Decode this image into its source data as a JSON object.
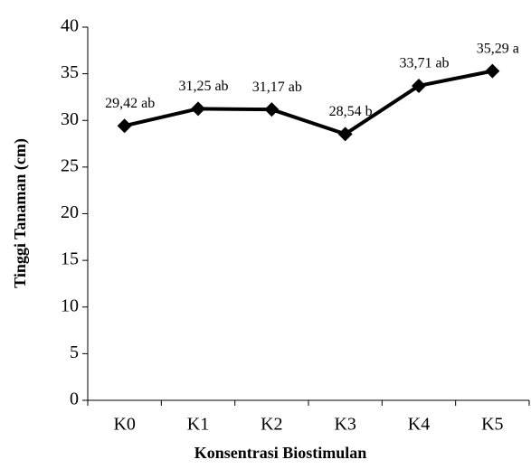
{
  "chart_data": {
    "type": "line",
    "x_label": "Konsentrasi Biostimulan",
    "y_label": "Tinggi Tanaman (cm)",
    "categories": [
      "K0",
      "K1",
      "K2",
      "K3",
      "K4",
      "K5"
    ],
    "series": [
      {
        "name": "Tinggi Tanaman",
        "color": "#000000",
        "values": [
          29.42,
          31.25,
          31.17,
          28.54,
          33.71,
          35.29
        ],
        "value_labels": [
          "29,42 ab",
          "31,25 ab",
          "31,17 ab",
          "28,54 b",
          "33,71 ab",
          "35,29 a"
        ]
      }
    ],
    "ylim": [
      0,
      40
    ],
    "yticks": [
      0,
      5,
      10,
      15,
      20,
      25,
      30,
      35,
      40
    ],
    "grid": false
  }
}
